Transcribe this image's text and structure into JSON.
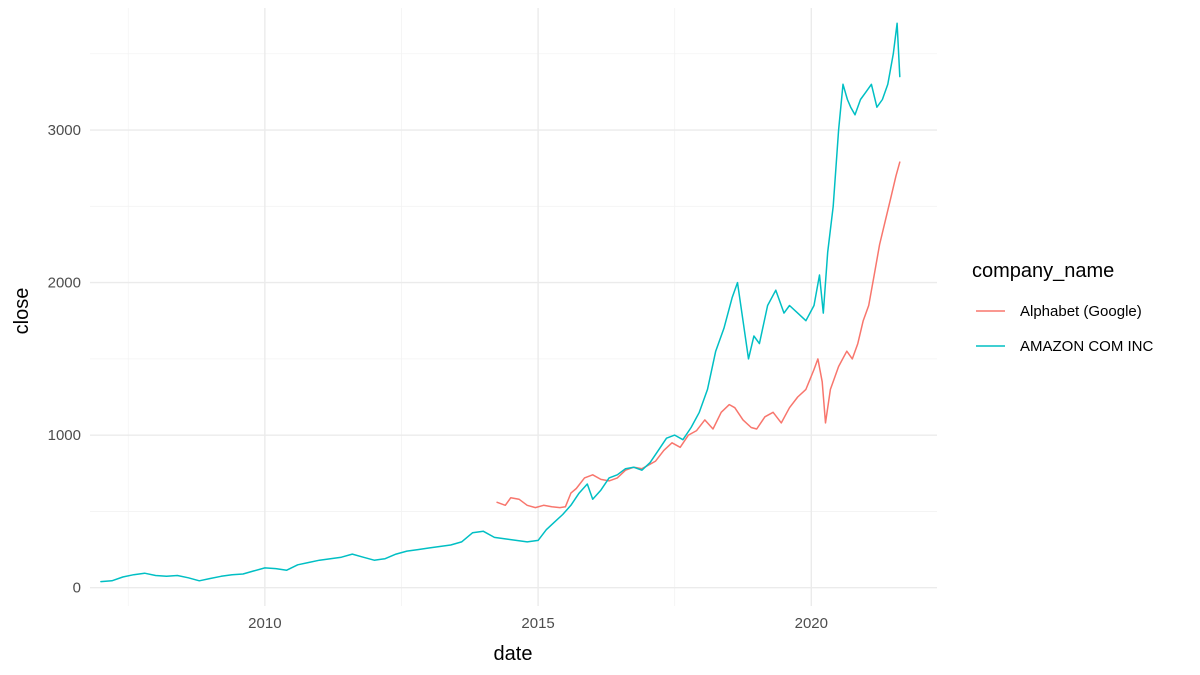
{
  "chart_data": {
    "type": "line",
    "title": "",
    "xlabel": "date",
    "ylabel": "close",
    "xlim": [
      2006.8,
      2022.3
    ],
    "ylim": [
      -120,
      3800
    ],
    "x_ticks": [
      2010,
      2015,
      2020
    ],
    "x_tick_labels": [
      "2010",
      "2015",
      "2020"
    ],
    "y_ticks": [
      0,
      1000,
      2000,
      3000
    ],
    "y_tick_labels": [
      "0",
      "1000",
      "2000",
      "3000"
    ],
    "grid": true,
    "legend": {
      "title": "company_name",
      "position": "right"
    },
    "series": [
      {
        "name": "Alphabet (Google)",
        "color": "#F8766D",
        "x": [
          2014.25,
          2014.4,
          2014.5,
          2014.65,
          2014.8,
          2014.95,
          2015.1,
          2015.25,
          2015.4,
          2015.5,
          2015.6,
          2015.7,
          2015.85,
          2016.0,
          2016.15,
          2016.3,
          2016.45,
          2016.6,
          2016.75,
          2016.9,
          2017.0,
          2017.15,
          2017.3,
          2017.45,
          2017.6,
          2017.75,
          2017.9,
          2018.05,
          2018.2,
          2018.35,
          2018.5,
          2018.6,
          2018.75,
          2018.9,
          2019.0,
          2019.15,
          2019.3,
          2019.45,
          2019.6,
          2019.75,
          2019.9,
          2020.05,
          2020.12,
          2020.2,
          2020.26,
          2020.35,
          2020.5,
          2020.65,
          2020.75,
          2020.85,
          2020.95,
          2021.05,
          2021.15,
          2021.25,
          2021.35,
          2021.45,
          2021.55,
          2021.62
        ],
        "values": [
          560,
          540,
          590,
          580,
          540,
          525,
          540,
          530,
          525,
          530,
          620,
          650,
          720,
          740,
          710,
          700,
          720,
          770,
          790,
          780,
          800,
          830,
          900,
          950,
          920,
          1000,
          1030,
          1100,
          1040,
          1150,
          1200,
          1180,
          1100,
          1050,
          1040,
          1120,
          1150,
          1080,
          1180,
          1250,
          1300,
          1430,
          1500,
          1350,
          1080,
          1300,
          1450,
          1550,
          1500,
          1600,
          1750,
          1850,
          2050,
          2250,
          2400,
          2550,
          2700,
          2790
        ]
      },
      {
        "name": "AMAZON COM INC",
        "color": "#00BFC4",
        "x": [
          2007.0,
          2007.2,
          2007.4,
          2007.6,
          2007.8,
          2008.0,
          2008.2,
          2008.4,
          2008.6,
          2008.8,
          2009.0,
          2009.2,
          2009.4,
          2009.6,
          2009.8,
          2010.0,
          2010.2,
          2010.4,
          2010.6,
          2010.8,
          2011.0,
          2011.2,
          2011.4,
          2011.6,
          2011.8,
          2012.0,
          2012.2,
          2012.4,
          2012.6,
          2012.8,
          2013.0,
          2013.2,
          2013.4,
          2013.6,
          2013.8,
          2014.0,
          2014.2,
          2014.4,
          2014.6,
          2014.8,
          2015.0,
          2015.15,
          2015.3,
          2015.45,
          2015.6,
          2015.75,
          2015.9,
          2016.0,
          2016.15,
          2016.3,
          2016.45,
          2016.6,
          2016.75,
          2016.9,
          2017.05,
          2017.2,
          2017.35,
          2017.5,
          2017.65,
          2017.8,
          2017.95,
          2018.1,
          2018.25,
          2018.4,
          2018.55,
          2018.65,
          2018.75,
          2018.85,
          2018.95,
          2019.05,
          2019.2,
          2019.35,
          2019.5,
          2019.6,
          2019.75,
          2019.9,
          2020.05,
          2020.15,
          2020.22,
          2020.3,
          2020.4,
          2020.5,
          2020.58,
          2020.66,
          2020.72,
          2020.8,
          2020.9,
          2021.0,
          2021.1,
          2021.2,
          2021.3,
          2021.4,
          2021.5,
          2021.57,
          2021.62
        ],
        "values": [
          40,
          45,
          70,
          85,
          95,
          80,
          75,
          80,
          65,
          45,
          60,
          75,
          85,
          90,
          110,
          130,
          125,
          115,
          150,
          165,
          180,
          190,
          200,
          220,
          200,
          180,
          190,
          220,
          240,
          250,
          260,
          270,
          280,
          300,
          360,
          370,
          330,
          320,
          310,
          300,
          310,
          380,
          430,
          480,
          540,
          620,
          680,
          580,
          640,
          720,
          740,
          780,
          790,
          770,
          820,
          900,
          980,
          1000,
          970,
          1050,
          1150,
          1300,
          1550,
          1700,
          1900,
          2000,
          1750,
          1500,
          1650,
          1600,
          1850,
          1950,
          1800,
          1850,
          1800,
          1750,
          1850,
          2050,
          1800,
          2200,
          2500,
          3000,
          3300,
          3200,
          3150,
          3100,
          3200,
          3250,
          3300,
          3150,
          3200,
          3300,
          3500,
          3700,
          3350
        ]
      }
    ]
  }
}
